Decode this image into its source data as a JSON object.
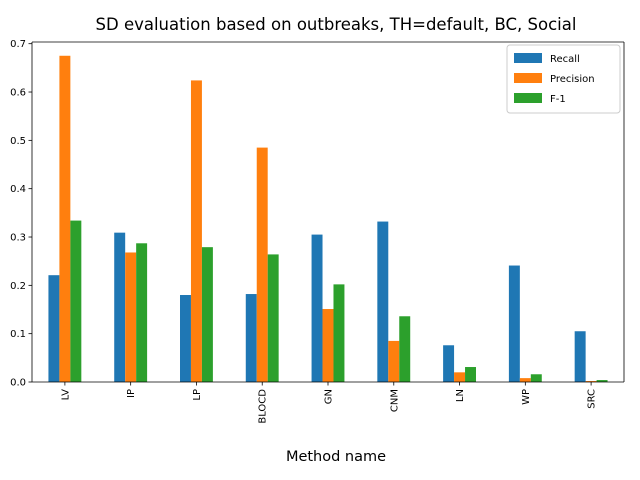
{
  "chart_data": {
    "type": "bar",
    "title": "SD evaluation based on outbreaks, TH=default, BC, Social",
    "xlabel": "Method name",
    "ylabel": "",
    "categories": [
      "LV",
      "IP",
      "LP",
      "BLOCD",
      "GN",
      "CNM",
      "LN",
      "WP",
      "SRC"
    ],
    "series": [
      {
        "name": "Recall",
        "color": "#1f77b4",
        "values": [
          0.221,
          0.309,
          0.18,
          0.182,
          0.305,
          0.332,
          0.076,
          0.241,
          0.105
        ]
      },
      {
        "name": "Precision",
        "color": "#ff7f0e",
        "values": [
          0.675,
          0.268,
          0.624,
          0.485,
          0.151,
          0.085,
          0.02,
          0.008,
          0.002
        ]
      },
      {
        "name": "F-1",
        "color": "#2ca02c",
        "values": [
          0.334,
          0.287,
          0.279,
          0.264,
          0.202,
          0.136,
          0.031,
          0.016,
          0.004
        ]
      }
    ],
    "ylim": [
      0,
      0.7
    ],
    "yticks": [
      "0.0",
      "0.1",
      "0.2",
      "0.3",
      "0.4",
      "0.5",
      "0.6",
      "0.7"
    ],
    "grid": false,
    "legend_position": "top-right"
  }
}
